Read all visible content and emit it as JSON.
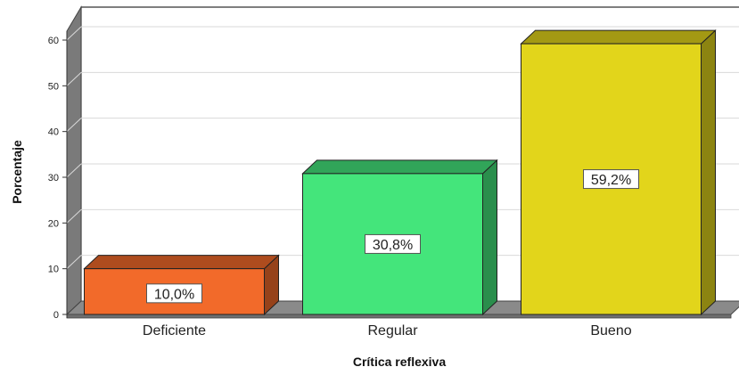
{
  "chart_data": {
    "type": "bar",
    "categories": [
      "Deficiente",
      "Regular",
      "Bueno"
    ],
    "values": [
      10.0,
      30.8,
      59.2
    ],
    "data_labels": [
      "10,0%",
      "30,8%",
      "59,2%"
    ],
    "colors": [
      "#f26a2a",
      "#44e57b",
      "#e2d51b"
    ],
    "xlabel": "Crítica reflexiva",
    "ylabel": "Porcentaje",
    "ylim": [
      0,
      60
    ],
    "yticks": [
      0,
      10,
      20,
      30,
      40,
      50,
      60
    ],
    "grid": true,
    "style": "3d"
  }
}
